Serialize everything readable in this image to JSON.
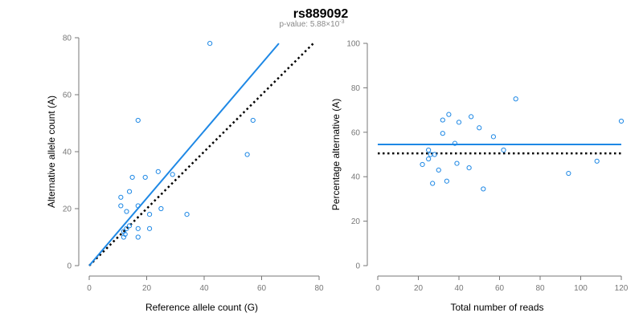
{
  "header": {
    "title": "rs889092",
    "pvalue_label": "p-value: 5.88×10",
    "pvalue_exponent": "-3"
  },
  "colors": {
    "points": "#1e88e5",
    "fit_line": "#1e88e5",
    "reference_line": "#000000",
    "axis": "#777777"
  },
  "chart_data": [
    {
      "type": "scatter",
      "title": "",
      "xlabel": "Reference allele count (G)",
      "ylabel": "Alternative allele count (A)",
      "xlim": [
        0,
        80
      ],
      "ylim": [
        0,
        80
      ],
      "xticks": [
        0,
        20,
        40,
        60,
        80
      ],
      "yticks": [
        0,
        20,
        40,
        60,
        80
      ],
      "grid": false,
      "points": [
        [
          42,
          78
        ],
        [
          17,
          51
        ],
        [
          57,
          51
        ],
        [
          55,
          39
        ],
        [
          15,
          31
        ],
        [
          19.5,
          31
        ],
        [
          14,
          26
        ],
        [
          11,
          24
        ],
        [
          11,
          21
        ],
        [
          17,
          21
        ],
        [
          24,
          33
        ],
        [
          29,
          32
        ],
        [
          25,
          20
        ],
        [
          34,
          18
        ],
        [
          21,
          18
        ],
        [
          13,
          19
        ],
        [
          14,
          14
        ],
        [
          13,
          13
        ],
        [
          12,
          12
        ],
        [
          12.5,
          11
        ],
        [
          17,
          13
        ],
        [
          12,
          10
        ],
        [
          17,
          10
        ],
        [
          21,
          13
        ]
      ],
      "fit_line": {
        "x": [
          0,
          66
        ],
        "y": [
          0,
          78
        ]
      },
      "reference_line": {
        "x": [
          0,
          78
        ],
        "y": [
          0,
          78
        ]
      }
    },
    {
      "type": "scatter",
      "title": "",
      "xlabel": "Total number of reads",
      "ylabel": "Percentage alternative (A)",
      "xlim": [
        0,
        120
      ],
      "ylim": [
        0,
        100
      ],
      "xticks": [
        0,
        20,
        40,
        60,
        80,
        100,
        120
      ],
      "yticks": [
        0,
        20,
        40,
        60,
        80,
        100
      ],
      "grid": false,
      "points": [
        [
          68,
          75
        ],
        [
          35,
          68
        ],
        [
          32,
          65.5
        ],
        [
          46,
          67
        ],
        [
          40,
          64.5
        ],
        [
          120,
          65
        ],
        [
          50,
          62
        ],
        [
          32,
          59.5
        ],
        [
          57,
          58
        ],
        [
          38,
          55
        ],
        [
          62,
          52
        ],
        [
          25,
          52
        ],
        [
          26,
          50
        ],
        [
          28,
          50
        ],
        [
          25,
          48
        ],
        [
          39,
          46
        ],
        [
          22,
          45.5
        ],
        [
          45,
          44
        ],
        [
          30,
          43
        ],
        [
          94,
          41.5
        ],
        [
          108,
          47
        ],
        [
          34,
          38
        ],
        [
          27,
          37
        ],
        [
          52,
          34.5
        ]
      ],
      "fit_line": {
        "x": [
          0,
          120
        ],
        "y": [
          54.5,
          54.5
        ]
      },
      "reference_line": {
        "x": [
          0,
          120
        ],
        "y": [
          50.5,
          50.5
        ]
      }
    }
  ]
}
